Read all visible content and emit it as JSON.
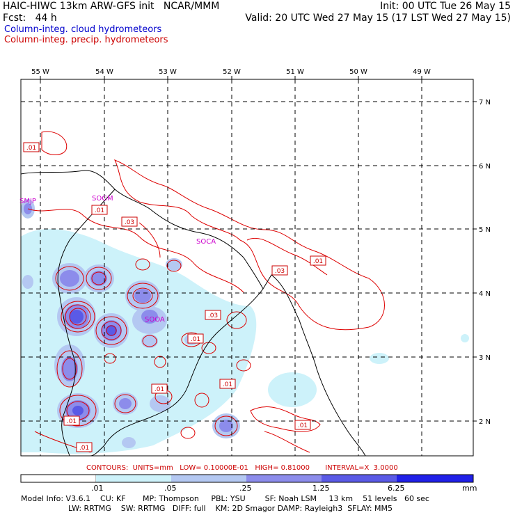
{
  "header": {
    "title": "HAIC-HIWC 13km ARW-GFS init   NCAR/MMM",
    "init": "Init: 00 UTC Tue 26 May 15",
    "fcst": "Fcst:   44 h",
    "valid": "Valid: 20 UTC Wed 27 May 15 (17 LST Wed 27 May 15)",
    "legend_cloud": "Column-integ. cloud hydrometeors",
    "legend_precip": "Column-integ. precip. hydrometeors",
    "colors": {
      "cloud": "#0000cc",
      "precip": "#cc0000"
    }
  },
  "map": {
    "lon_labels": [
      "55 W",
      "54 W",
      "53 W",
      "52 W",
      "51 W",
      "50 W",
      "49 W"
    ],
    "lat_labels": [
      "7 N",
      "6 N",
      "5 N",
      "4 N",
      "3 N",
      "2 N"
    ],
    "stations": [
      "SMJP",
      "SOGM",
      "SOCA",
      "SOOA"
    ],
    "contour_labels": [
      ".01",
      ".01",
      ".03",
      ".01",
      ".03",
      ".03",
      ".01",
      ".01",
      ".01",
      ".01",
      ".01",
      ".01"
    ],
    "colors": {
      "contour": "#cc0000",
      "station": "#cc00cc",
      "coast": "#000000"
    }
  },
  "contours_line": "CONTOURS:  UNITS=mm   LOW= 0.10000E-01   HIGH= 0.81000       INTERVAL=X  3.0000",
  "colorbar": {
    "labels": [
      ".01",
      ".05",
      ".25",
      "1.25",
      "6.25",
      "mm"
    ],
    "colors": [
      "#ffffff",
      "#cdf2fa",
      "#b4c8f2",
      "#8c8ceb",
      "#5a5ae6",
      "#2020e8"
    ]
  },
  "model_info": {
    "line1": "Model Info: V3.6.1    CU: KF       MP: Thompson     PBL: YSU        SF: Noah LSM     13 km    51 levels   60 sec",
    "line2": "LW: RRTMG    SW: RRTMG   DIFF: full    KM: 2D Smagor DAMP: Rayleigh3  SFLAY: MM5"
  }
}
